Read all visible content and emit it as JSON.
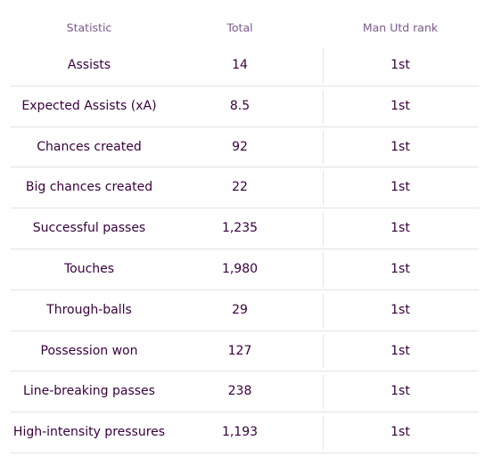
{
  "table": {
    "header": [
      "Statistic",
      "Total",
      "Man Utd rank"
    ],
    "rows": [
      [
        "Assists",
        "14",
        "1st"
      ],
      [
        "Expected Assists (xA)",
        "8.5",
        "1st"
      ],
      [
        "Chances created",
        "92",
        "1st"
      ],
      [
        "Big chances created",
        "22",
        "1st"
      ],
      [
        "Successful passes",
        "1,235",
        "1st"
      ],
      [
        "Touches",
        "1,980",
        "1st"
      ],
      [
        "Through-balls",
        "29",
        "1st"
      ],
      [
        "Possession won",
        "127",
        "1st"
      ],
      [
        "Line-breaking passes",
        "238",
        "1st"
      ],
      [
        "High-intensity pressures",
        "1,193",
        "1st"
      ]
    ]
  }
}
